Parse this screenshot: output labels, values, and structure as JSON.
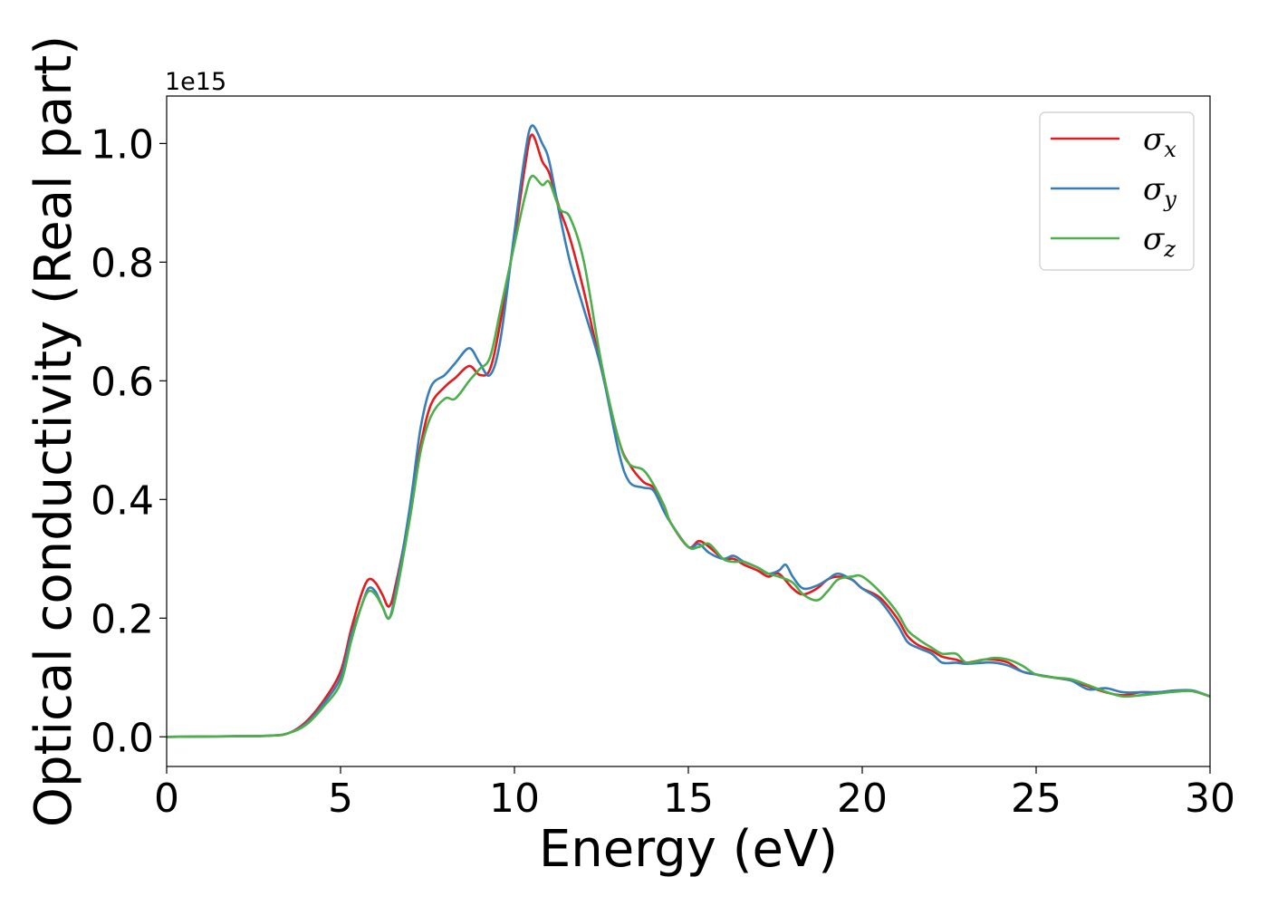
{
  "chart_data": {
    "type": "line",
    "xlabel": "Energy (eV)",
    "ylabel": "Optical conductivity (Real part)",
    "y_offset_label": "1e15",
    "xlim": [
      0,
      30
    ],
    "ylim": [
      -0.05,
      1.08
    ],
    "xticks": [
      0,
      5,
      10,
      15,
      20,
      25,
      30
    ],
    "yticks": [
      0.0,
      0.2,
      0.4,
      0.6,
      0.8,
      1.0
    ],
    "xtick_labels": [
      "0",
      "5",
      "10",
      "15",
      "20",
      "25",
      "30"
    ],
    "ytick_labels": [
      "0.0",
      "0.2",
      "0.4",
      "0.6",
      "0.8",
      "1.0"
    ],
    "grid": false,
    "legend_position": "top-right",
    "series": [
      {
        "name": "σx",
        "symbol": "σ",
        "subscript": "x",
        "color": "#e41a1c",
        "x": [
          0,
          2,
          3,
          3.5,
          4,
          4.5,
          5,
          5.3,
          5.6,
          5.8,
          6,
          6.2,
          6.4,
          6.6,
          7,
          7.3,
          7.6,
          8,
          8.3,
          8.7,
          9,
          9.3,
          9.6,
          10,
          10.3,
          10.5,
          10.8,
          11,
          11.3,
          11.6,
          12,
          12.5,
          13,
          13.3,
          13.7,
          14,
          14.3,
          14.5,
          15,
          15.3,
          15.6,
          16,
          16.3,
          16.6,
          17,
          17.3,
          17.6,
          18,
          18.3,
          18.7,
          19,
          19.3,
          19.7,
          20,
          20.5,
          21,
          21.3,
          21.6,
          22,
          22.3,
          22.7,
          23,
          23.5,
          23.8,
          24.2,
          24.6,
          25,
          25.5,
          26,
          26.5,
          27,
          27.5,
          28,
          28.5,
          29,
          29.5,
          30
        ],
        "y": [
          0.0,
          0.001,
          0.002,
          0.006,
          0.025,
          0.06,
          0.11,
          0.18,
          0.24,
          0.265,
          0.26,
          0.24,
          0.22,
          0.26,
          0.38,
          0.49,
          0.56,
          0.59,
          0.605,
          0.625,
          0.61,
          0.62,
          0.7,
          0.84,
          0.96,
          1.015,
          0.97,
          0.95,
          0.89,
          0.84,
          0.75,
          0.62,
          0.5,
          0.46,
          0.43,
          0.42,
          0.39,
          0.36,
          0.32,
          0.33,
          0.32,
          0.3,
          0.3,
          0.29,
          0.28,
          0.27,
          0.275,
          0.25,
          0.24,
          0.25,
          0.265,
          0.27,
          0.265,
          0.25,
          0.235,
          0.2,
          0.17,
          0.155,
          0.145,
          0.135,
          0.13,
          0.125,
          0.13,
          0.13,
          0.125,
          0.11,
          0.105,
          0.1,
          0.095,
          0.085,
          0.075,
          0.07,
          0.075,
          0.075,
          0.078,
          0.077,
          0.068
        ]
      },
      {
        "name": "σy",
        "symbol": "σ",
        "subscript": "y",
        "color": "#377eb8",
        "x": [
          0,
          2,
          3,
          3.5,
          4,
          4.5,
          5,
          5.3,
          5.6,
          5.8,
          6,
          6.2,
          6.4,
          6.6,
          7,
          7.3,
          7.6,
          8,
          8.3,
          8.7,
          9,
          9.3,
          9.6,
          10,
          10.3,
          10.5,
          10.8,
          11,
          11.3,
          11.6,
          12,
          12.5,
          13,
          13.3,
          13.7,
          14,
          14.3,
          14.5,
          15,
          15.3,
          15.6,
          16,
          16.3,
          16.6,
          17,
          17.3,
          17.6,
          17.8,
          18,
          18.3,
          18.7,
          19,
          19.3,
          19.7,
          20,
          20.5,
          21,
          21.3,
          21.6,
          22,
          22.3,
          22.7,
          23,
          23.5,
          23.8,
          24.2,
          24.6,
          25,
          25.5,
          26,
          26.5,
          27,
          27.5,
          28,
          28.5,
          29,
          29.5,
          30
        ],
        "y": [
          0.0,
          0.001,
          0.002,
          0.006,
          0.022,
          0.055,
          0.1,
          0.17,
          0.22,
          0.25,
          0.245,
          0.22,
          0.2,
          0.25,
          0.39,
          0.52,
          0.59,
          0.61,
          0.63,
          0.655,
          0.63,
          0.61,
          0.67,
          0.85,
          0.98,
          1.03,
          1.0,
          0.97,
          0.88,
          0.8,
          0.72,
          0.62,
          0.48,
          0.43,
          0.42,
          0.415,
          0.38,
          0.36,
          0.32,
          0.325,
          0.31,
          0.3,
          0.305,
          0.295,
          0.285,
          0.275,
          0.28,
          0.29,
          0.27,
          0.25,
          0.255,
          0.265,
          0.275,
          0.265,
          0.25,
          0.23,
          0.19,
          0.16,
          0.15,
          0.14,
          0.125,
          0.125,
          0.123,
          0.125,
          0.125,
          0.12,
          0.11,
          0.105,
          0.1,
          0.095,
          0.08,
          0.082,
          0.075,
          0.075,
          0.075,
          0.078,
          0.078,
          0.068
        ]
      },
      {
        "name": "σz",
        "symbol": "σ",
        "subscript": "z",
        "color": "#4daf4a",
        "x": [
          0,
          2,
          3,
          3.5,
          4,
          4.5,
          5,
          5.3,
          5.6,
          5.8,
          6,
          6.2,
          6.4,
          6.6,
          7,
          7.3,
          7.6,
          8,
          8.3,
          8.7,
          9,
          9.3,
          9.6,
          10,
          10.3,
          10.5,
          10.8,
          11,
          11.3,
          11.6,
          12,
          12.5,
          13,
          13.3,
          13.7,
          14,
          14.3,
          14.5,
          15,
          15.3,
          15.6,
          16,
          16.3,
          16.6,
          17,
          17.3,
          17.6,
          18,
          18.3,
          18.7,
          19,
          19.3,
          19.7,
          20,
          20.5,
          21,
          21.3,
          21.6,
          22,
          22.3,
          22.7,
          23,
          23.5,
          23.8,
          24.2,
          24.6,
          25,
          25.5,
          26,
          26.5,
          27,
          27.5,
          28,
          28.5,
          29,
          29.5,
          30
        ],
        "y": [
          0.0,
          0.001,
          0.002,
          0.006,
          0.02,
          0.05,
          0.09,
          0.16,
          0.22,
          0.245,
          0.24,
          0.22,
          0.2,
          0.24,
          0.37,
          0.48,
          0.54,
          0.57,
          0.57,
          0.6,
          0.62,
          0.64,
          0.72,
          0.83,
          0.91,
          0.945,
          0.93,
          0.935,
          0.89,
          0.875,
          0.8,
          0.63,
          0.5,
          0.46,
          0.45,
          0.425,
          0.39,
          0.36,
          0.32,
          0.32,
          0.325,
          0.3,
          0.295,
          0.295,
          0.285,
          0.275,
          0.27,
          0.26,
          0.24,
          0.23,
          0.245,
          0.265,
          0.27,
          0.27,
          0.245,
          0.21,
          0.18,
          0.165,
          0.15,
          0.14,
          0.14,
          0.125,
          0.13,
          0.133,
          0.13,
          0.12,
          0.105,
          0.1,
          0.097,
          0.087,
          0.076,
          0.068,
          0.07,
          0.073,
          0.076,
          0.077,
          0.068
        ]
      }
    ]
  }
}
